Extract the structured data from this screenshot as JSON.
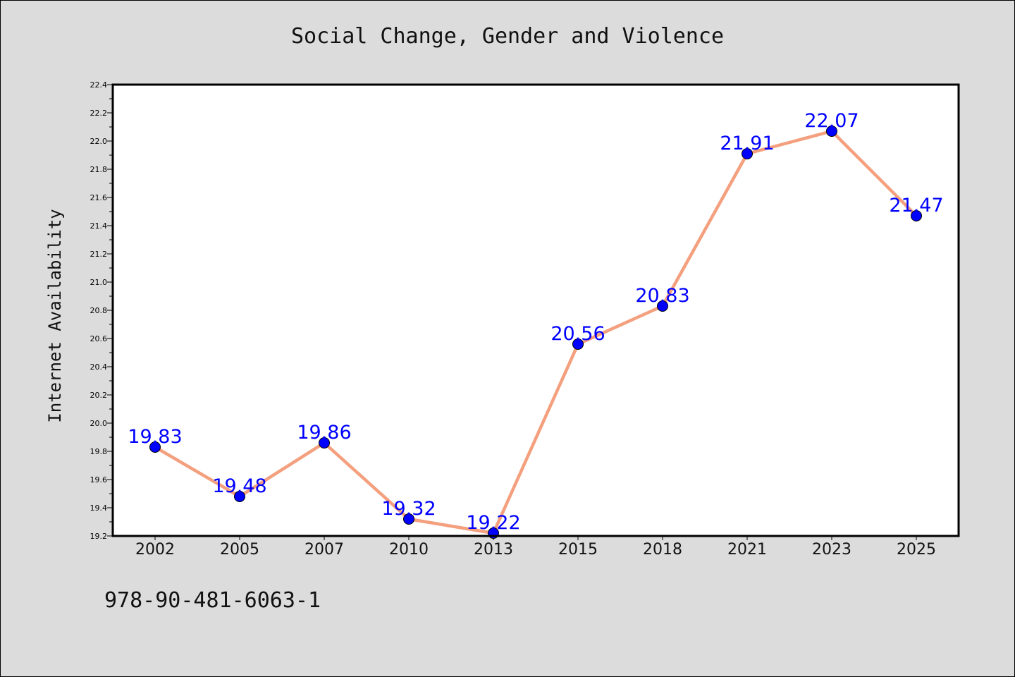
{
  "page": {
    "title": "Social Change, Gender and Violence",
    "ylabel": "Internet Availability",
    "footer_text": "978-90-481-6063-1"
  },
  "chart_data": {
    "type": "line",
    "title": "Social Change, Gender and Violence",
    "xlabel": "",
    "ylabel": "Internet Availability",
    "categories": [
      "2002",
      "2005",
      "2007",
      "2010",
      "2013",
      "2015",
      "2018",
      "2021",
      "2023",
      "2025"
    ],
    "series": [
      {
        "values": [
          19.83,
          19.48,
          19.86,
          19.32,
          19.22,
          20.56,
          20.83,
          21.91,
          22.07,
          21.47
        ],
        "labels": [
          "19.83",
          "19.48",
          "19.86",
          "19.32",
          "19.22",
          "20.56",
          "20.83",
          "21.91",
          "22.07",
          "21.47"
        ],
        "line_color": "#f4a07e",
        "marker_color": "#0000ff"
      }
    ],
    "ylim": [
      19.2,
      22.4
    ],
    "yticks": [
      "19.2",
      "19.4",
      "19.6",
      "19.8",
      "20.0",
      "20.2",
      "20.4",
      "20.6",
      "20.8",
      "21.0",
      "21.2",
      "21.4",
      "21.6",
      "21.8",
      "22.0",
      "22.2",
      "22.4"
    ],
    "grid": false,
    "legend": "none"
  }
}
